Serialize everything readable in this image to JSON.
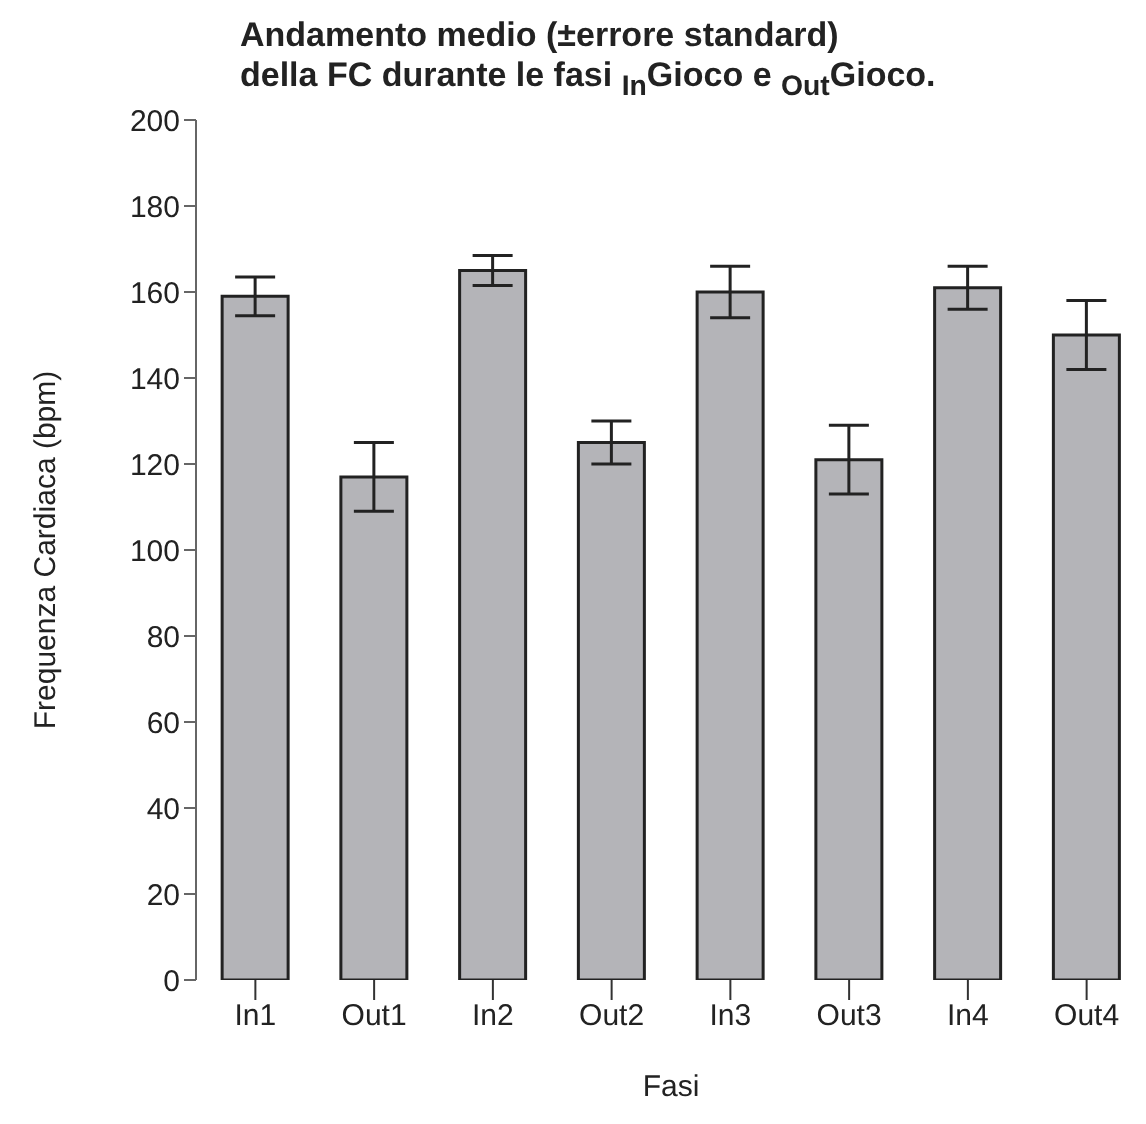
{
  "chart_data": {
    "type": "bar",
    "title": "Andamento medio (±errore standard)\ndella FC durante le fasi $_{In}$Gioco e $_{Out}$Gioco.",
    "xlabel": "Fasi",
    "ylabel": "Frequenza Cardiaca (bpm)",
    "categories": [
      "In1",
      "Out1",
      "In2",
      "Out2",
      "In3",
      "Out3",
      "In4",
      "Out4"
    ],
    "values": [
      159,
      117,
      165,
      125,
      160,
      121,
      161,
      150
    ],
    "errors": [
      4.5,
      8,
      3.5,
      5,
      6,
      8,
      5,
      8
    ],
    "color": "#b4b4b8",
    "ylim": [
      0,
      200
    ],
    "yticks": [
      0,
      20,
      40,
      60,
      80,
      100,
      120,
      140,
      160,
      180,
      200
    ],
    "grid": false,
    "legend": false
  }
}
